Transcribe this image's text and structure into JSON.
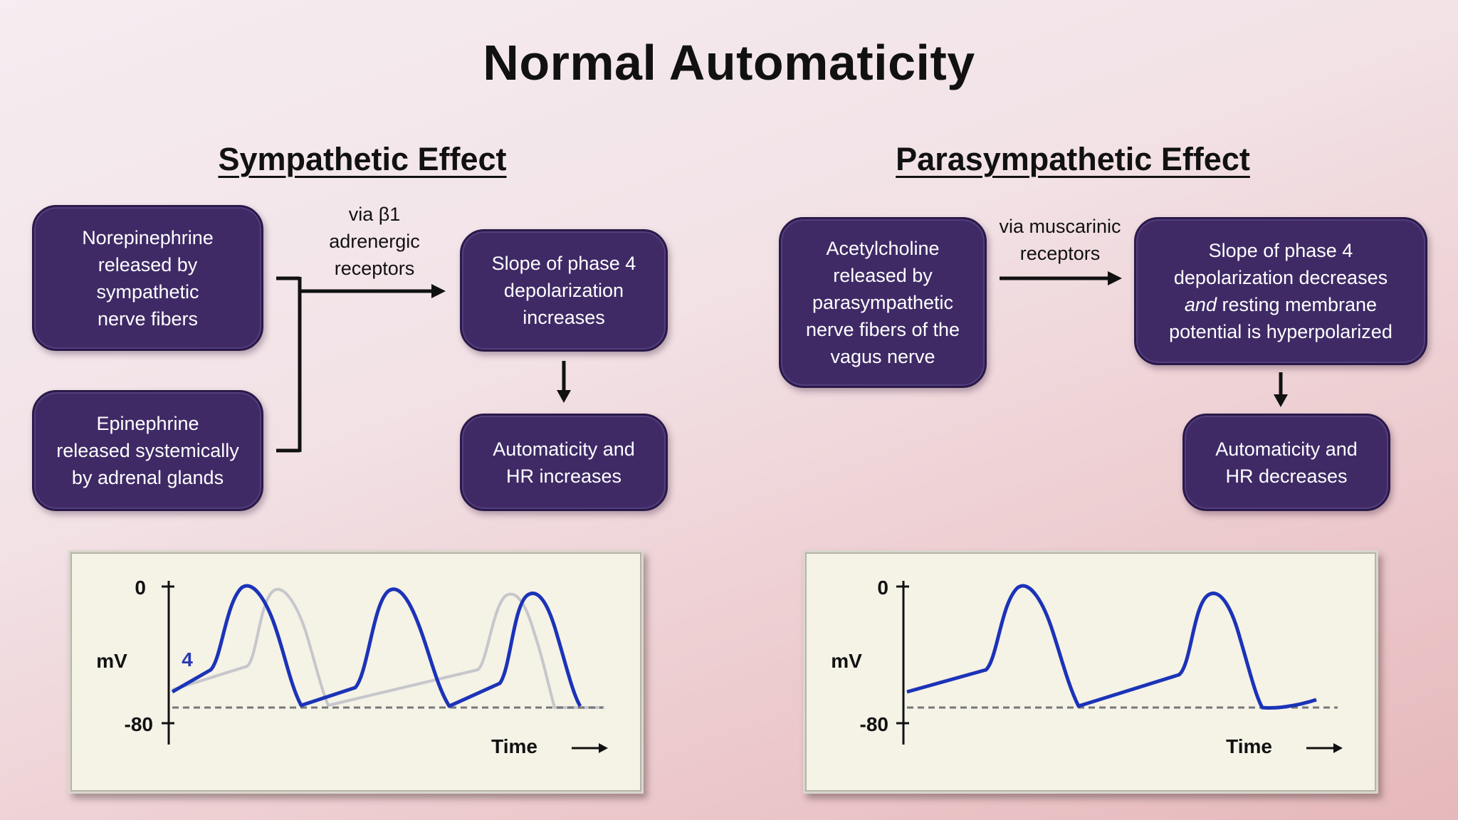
{
  "title": "Normal Automaticity",
  "sympathetic": {
    "heading": "Sympathetic Effect",
    "box_norepinephrine": [
      "Norepinephrine",
      "released by",
      "sympathetic",
      "nerve fibers"
    ],
    "box_epinephrine": [
      "Epinephrine",
      "released systemically",
      "by adrenal glands"
    ],
    "receptor_label": [
      "via β1",
      "adrenergic",
      "receptors"
    ],
    "box_slope": [
      "Slope of phase 4",
      "depolarization",
      "increases"
    ],
    "box_result": [
      "Automaticity and",
      "HR increases"
    ]
  },
  "parasympathetic": {
    "heading": "Parasympathetic Effect",
    "box_acetylcholine": [
      "Acetylcholine",
      "released by",
      "parasympathetic",
      "nerve fibers of the",
      "vagus nerve"
    ],
    "receptor_label": [
      "via muscarinic",
      "receptors"
    ],
    "box_slope": {
      "line1": "Slope of phase 4",
      "line2": "depolarization decreases",
      "line3_italic": "and",
      "line3_rest": " resting membrane",
      "line4": "potential is hyperpolarized"
    },
    "box_result": [
      "Automaticity and",
      "HR decreases"
    ]
  },
  "plots": {
    "y_top_label": "0",
    "y_bottom_label": "-80",
    "y_unit": "mV",
    "x_label": "Time",
    "phase_label": "4"
  },
  "colors": {
    "box_fill": "#3f2a66",
    "trace": "#1b33b8",
    "trace_faded": "#c8c8cc",
    "baseline": "#777777"
  }
}
